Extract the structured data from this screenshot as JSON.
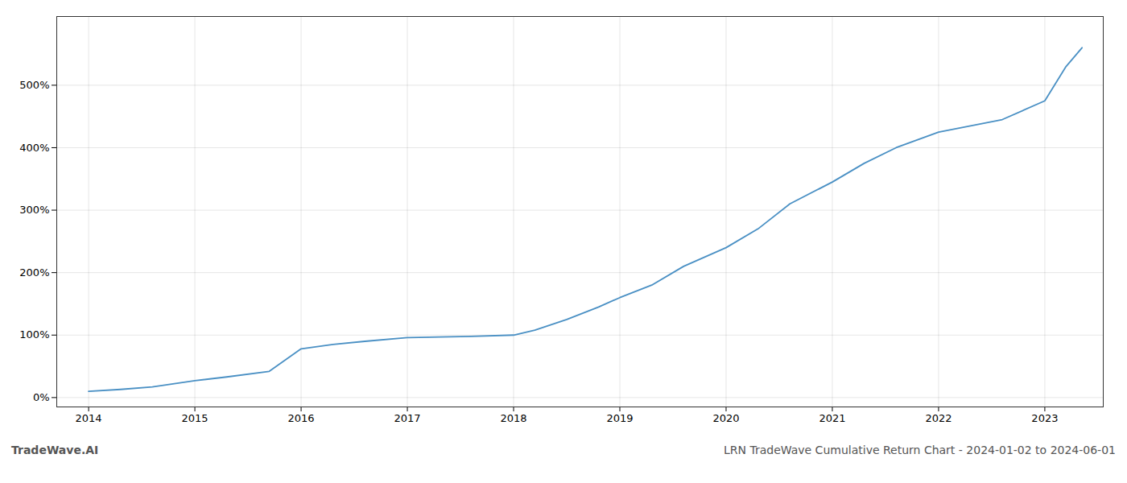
{
  "chart_data": {
    "type": "line",
    "title": "LRN TradeWave Cumulative Return Chart - 2024-01-02 to 2024-06-01",
    "annotations": [
      "TradeWave.AI"
    ],
    "x": [
      2014.0,
      2014.3,
      2014.6,
      2015.0,
      2015.3,
      2015.7,
      2016.0,
      2016.3,
      2016.6,
      2017.0,
      2017.3,
      2017.6,
      2018.0,
      2018.2,
      2018.5,
      2018.8,
      2019.0,
      2019.3,
      2019.6,
      2020.0,
      2020.3,
      2020.6,
      2021.0,
      2021.3,
      2021.6,
      2022.0,
      2022.3,
      2022.6,
      2023.0,
      2023.2,
      2023.35
    ],
    "values": [
      10,
      13,
      17,
      27,
      33,
      42,
      78,
      85,
      90,
      96,
      97,
      98,
      100,
      108,
      125,
      145,
      160,
      180,
      210,
      240,
      270,
      310,
      345,
      375,
      400,
      425,
      435,
      445,
      475,
      530,
      560
    ],
    "color": "#4a90c4",
    "xlim": [
      2013.7,
      2023.55
    ],
    "xticks": [
      2014,
      2015,
      2016,
      2017,
      2018,
      2019,
      2020,
      2021,
      2022,
      2023
    ],
    "ylim": [
      -15,
      610
    ],
    "yticks": [
      {
        "value": 0,
        "label": "0%"
      },
      {
        "value": 100,
        "label": "100%"
      },
      {
        "value": 200,
        "label": "200%"
      },
      {
        "value": 300,
        "label": "300%"
      },
      {
        "value": 400,
        "label": "400%"
      },
      {
        "value": 500,
        "label": "500%"
      }
    ],
    "grid": true
  }
}
